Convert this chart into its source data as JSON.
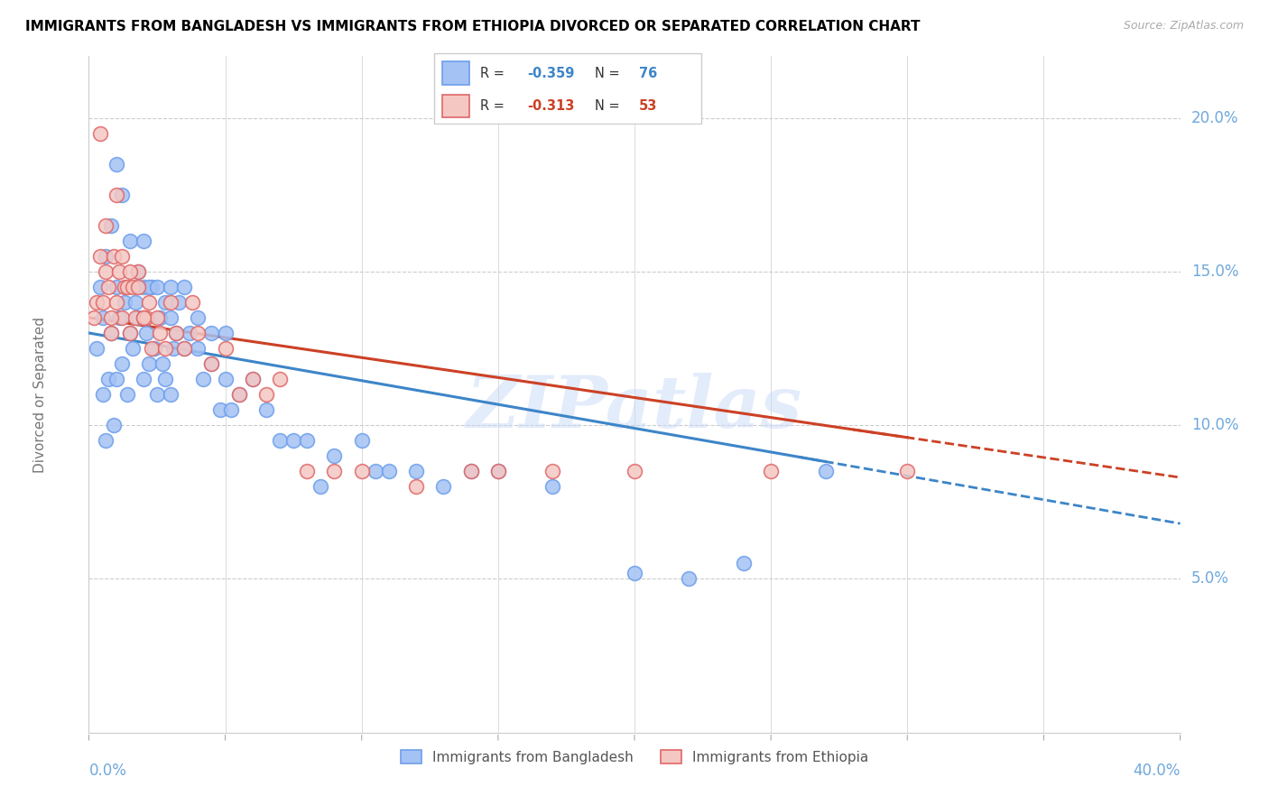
{
  "title": "IMMIGRANTS FROM BANGLADESH VS IMMIGRANTS FROM ETHIOPIA DIVORCED OR SEPARATED CORRELATION CHART",
  "source": "Source: ZipAtlas.com",
  "ylabel": "Divorced or Separated",
  "yticks": [
    5.0,
    10.0,
    15.0,
    20.0
  ],
  "xlim": [
    0.0,
    40.0
  ],
  "ylim": [
    0.0,
    22.0
  ],
  "legend_blue_R": "-0.359",
  "legend_blue_N": "76",
  "legend_pink_R": "-0.313",
  "legend_pink_N": "53",
  "blue_face_color": "#a4c2f4",
  "pink_face_color": "#f4c7c3",
  "blue_edge_color": "#6d9eeb",
  "pink_edge_color": "#e06666",
  "blue_line_color": "#3d85c8",
  "pink_line_color": "#cc4125",
  "axis_tick_color": "#6fa8dc",
  "watermark": "ZIPatlas",
  "bangladesh_x": [
    0.3,
    0.4,
    0.5,
    0.5,
    0.6,
    0.7,
    0.8,
    0.9,
    1.0,
    1.0,
    1.1,
    1.2,
    1.3,
    1.4,
    1.5,
    1.6,
    1.7,
    1.8,
    2.0,
    2.0,
    2.1,
    2.2,
    2.3,
    2.4,
    2.5,
    2.6,
    2.7,
    2.8,
    3.0,
    3.0,
    3.1,
    3.2,
    3.5,
    3.7,
    4.0,
    4.2,
    4.5,
    4.8,
    5.0,
    5.2,
    5.5,
    6.0,
    6.5,
    7.0,
    7.5,
    8.0,
    8.5,
    9.0,
    10.0,
    10.5,
    11.0,
    12.0,
    13.0,
    14.0,
    15.0,
    17.0,
    20.0,
    22.0,
    24.0,
    27.0,
    0.6,
    0.8,
    1.0,
    1.2,
    1.5,
    1.8,
    2.0,
    2.2,
    2.5,
    2.8,
    3.0,
    3.3,
    3.5,
    4.0,
    4.5,
    5.0
  ],
  "bangladesh_y": [
    12.5,
    14.5,
    11.0,
    13.5,
    9.5,
    11.5,
    13.0,
    10.0,
    14.5,
    11.5,
    13.5,
    12.0,
    14.0,
    11.0,
    13.0,
    12.5,
    14.0,
    13.5,
    11.5,
    14.5,
    13.0,
    12.0,
    14.5,
    12.5,
    11.0,
    13.5,
    12.0,
    11.5,
    13.5,
    11.0,
    12.5,
    13.0,
    12.5,
    13.0,
    12.5,
    11.5,
    12.0,
    10.5,
    11.5,
    10.5,
    11.0,
    11.5,
    10.5,
    9.5,
    9.5,
    9.5,
    8.0,
    9.0,
    9.5,
    8.5,
    8.5,
    8.5,
    8.0,
    8.5,
    8.5,
    8.0,
    5.2,
    5.0,
    5.5,
    8.5,
    15.5,
    16.5,
    18.5,
    17.5,
    16.0,
    15.0,
    16.0,
    14.5,
    14.5,
    14.0,
    14.5,
    14.0,
    14.5,
    13.5,
    13.0,
    13.0
  ],
  "ethiopia_x": [
    0.2,
    0.3,
    0.4,
    0.5,
    0.6,
    0.7,
    0.8,
    0.9,
    1.0,
    1.1,
    1.2,
    1.3,
    1.4,
    1.5,
    1.6,
    1.7,
    1.8,
    2.0,
    2.1,
    2.2,
    2.3,
    2.5,
    2.6,
    2.8,
    3.0,
    3.2,
    3.5,
    3.8,
    4.0,
    4.5,
    5.0,
    5.5,
    6.0,
    6.5,
    7.0,
    8.0,
    9.0,
    10.0,
    12.0,
    14.0,
    15.0,
    17.0,
    20.0,
    25.0,
    30.0,
    0.4,
    0.6,
    0.8,
    1.0,
    1.2,
    1.5,
    1.8,
    2.0
  ],
  "ethiopia_y": [
    13.5,
    14.0,
    15.5,
    14.0,
    15.0,
    14.5,
    13.0,
    15.5,
    14.0,
    15.0,
    13.5,
    14.5,
    14.5,
    13.0,
    14.5,
    13.5,
    15.0,
    13.5,
    13.5,
    14.0,
    12.5,
    13.5,
    13.0,
    12.5,
    14.0,
    13.0,
    12.5,
    14.0,
    13.0,
    12.0,
    12.5,
    11.0,
    11.5,
    11.0,
    11.5,
    8.5,
    8.5,
    8.5,
    8.0,
    8.5,
    8.5,
    8.5,
    8.5,
    8.5,
    8.5,
    19.5,
    16.5,
    13.5,
    17.5,
    15.5,
    15.0,
    14.5,
    13.5
  ],
  "blue_intercept": 13.0,
  "blue_slope": -0.155,
  "pink_intercept": 13.5,
  "pink_slope": -0.13
}
